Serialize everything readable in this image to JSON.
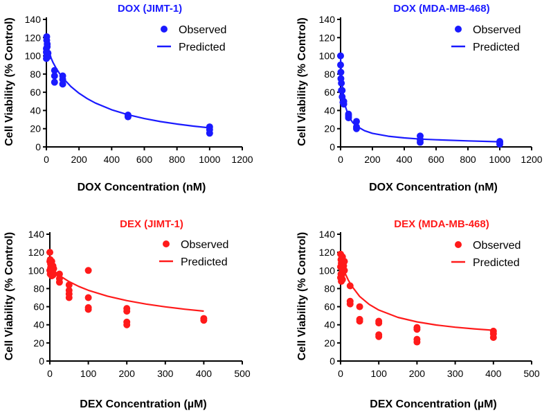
{
  "chart_data": [
    {
      "type": "scatter",
      "title": "DOX (JIMT-1)",
      "xlabel": "DOX Concentration (nM)",
      "ylabel": "Cell Viability (% Control)",
      "xlim": [
        0,
        1200
      ],
      "ylim": [
        0,
        140
      ],
      "xticks": [
        "0",
        "200",
        "400",
        "600",
        "800",
        "1000",
        "1200"
      ],
      "yticks": [
        "0",
        "20",
        "40",
        "60",
        "80",
        "100",
        "120",
        "140"
      ],
      "legend_position": "top-right",
      "color": "#1a1aff",
      "series": [
        {
          "name": "Observed",
          "kind": "points",
          "x": [
            0,
            0,
            0,
            2,
            2,
            2,
            5,
            5,
            10,
            10,
            50,
            50,
            50,
            100,
            100,
            100,
            500,
            500,
            1000,
            1000,
            1000
          ],
          "y": [
            108,
            104,
            97,
            121,
            117,
            100,
            113,
            110,
            103,
            99,
            84,
            78,
            71,
            78,
            74,
            69,
            35,
            33,
            22,
            19,
            15
          ]
        },
        {
          "name": "Predicted",
          "kind": "line",
          "x": [
            0,
            5,
            10,
            20,
            40,
            60,
            80,
            100,
            150,
            200,
            250,
            300,
            400,
            500,
            600,
            700,
            800,
            900,
            1000
          ],
          "y": [
            112,
            109,
            106.3,
            101.4,
            93,
            86.3,
            80.7,
            75.9,
            66.3,
            58.9,
            53,
            48.2,
            40.8,
            35.3,
            31.1,
            27.8,
            25.1,
            22.8,
            20.9
          ]
        }
      ]
    },
    {
      "type": "scatter",
      "title": "DOX (MDA-MB-468)",
      "xlabel": "DOX Concentration (nM)",
      "ylabel": "Cell Viability (% Control)",
      "xlim": [
        0,
        1200
      ],
      "ylim": [
        0,
        140
      ],
      "xticks": [
        "0",
        "200",
        "400",
        "600",
        "800",
        "1000",
        "1200"
      ],
      "yticks": [
        "0",
        "20",
        "40",
        "60",
        "80",
        "100",
        "120",
        "140"
      ],
      "legend_position": "top-right",
      "color": "#1a1aff",
      "series": [
        {
          "name": "Observed",
          "kind": "points",
          "x": [
            0,
            0,
            2,
            2,
            5,
            5,
            10,
            10,
            15,
            20,
            20,
            50,
            50,
            50,
            100,
            100,
            100,
            500,
            500,
            500,
            1000,
            1000,
            1000
          ],
          "y": [
            100,
            90,
            82,
            75,
            70,
            62,
            62,
            55,
            49,
            50,
            47,
            36,
            34,
            32,
            28,
            22,
            20,
            12,
            8,
            5,
            6,
            5,
            3
          ]
        },
        {
          "name": "Predicted",
          "kind": "line",
          "x": [
            0,
            5,
            10,
            20,
            30,
            50,
            75,
            100,
            150,
            200,
            300,
            400,
            500,
            600,
            800,
            1000
          ],
          "y": [
            98,
            80.5,
            68.7,
            53.8,
            44.6,
            34,
            26.9,
            22.8,
            17.8,
            14.9,
            11.7,
            9.9,
            8.6,
            7.8,
            6.6,
            5.6
          ]
        }
      ]
    },
    {
      "type": "scatter",
      "title": "DEX (JIMT-1)",
      "xlabel": "DEX Concentration (µM)",
      "ylabel": "Cell Viability (% Control)",
      "xlim": [
        0,
        500
      ],
      "ylim": [
        0,
        140
      ],
      "xticks": [
        "0",
        "100",
        "200",
        "300",
        "400",
        "500"
      ],
      "yticks": [
        "0",
        "20",
        "40",
        "60",
        "80",
        "100",
        "120",
        "140"
      ],
      "legend_position": "top-right",
      "color": "#ff1a1a",
      "series": [
        {
          "name": "Observed",
          "kind": "points",
          "x": [
            0,
            0,
            0,
            1,
            1,
            2,
            2,
            3,
            3,
            5,
            5,
            5,
            8,
            8,
            10,
            10,
            25,
            25,
            25,
            50,
            50,
            50,
            50,
            100,
            100,
            100,
            100,
            200,
            200,
            200,
            200,
            400,
            400
          ],
          "y": [
            120,
            110,
            100,
            112,
            96,
            107,
            103,
            104,
            98,
            110,
            100,
            94,
            105,
            95,
            102,
            96,
            96,
            91,
            87,
            84,
            78,
            74,
            70,
            100,
            70,
            59,
            57,
            58,
            55,
            43,
            40,
            47,
            45
          ]
        },
        {
          "name": "Predicted",
          "kind": "line",
          "x": [
            0,
            5,
            10,
            20,
            30,
            50,
            75,
            100,
            150,
            200,
            250,
            300,
            350,
            400
          ],
          "y": [
            104,
            101.8,
            99.8,
            96.2,
            93,
            87.7,
            82.4,
            78.1,
            71.6,
            66.7,
            62.9,
            59.8,
            57.2,
            55.1
          ]
        }
      ]
    },
    {
      "type": "scatter",
      "title": "DEX (MDA-MB-468)",
      "xlabel": "DEX Concentration (µM)",
      "ylabel": "Cell Viability (% Control)",
      "xlim": [
        0,
        500
      ],
      "ylim": [
        0,
        140
      ],
      "xticks": [
        "0",
        "100",
        "200",
        "300",
        "400",
        "500"
      ],
      "yticks": [
        "0",
        "20",
        "40",
        "60",
        "80",
        "100",
        "120",
        "140"
      ],
      "legend_position": "top-right",
      "color": "#ff1a1a",
      "series": [
        {
          "name": "Observed",
          "kind": "points",
          "x": [
            0,
            0,
            0,
            1,
            1,
            2,
            2,
            3,
            3,
            5,
            5,
            5,
            8,
            10,
            10,
            25,
            25,
            25,
            50,
            50,
            50,
            100,
            100,
            100,
            100,
            200,
            200,
            200,
            200,
            400,
            400,
            400
          ],
          "y": [
            118,
            104,
            92,
            112,
            96,
            108,
            88,
            110,
            95,
            115,
            100,
            90,
            105,
            110,
            100,
            83,
            66,
            63,
            60,
            46,
            44,
            44,
            42,
            29,
            27,
            37,
            35,
            24,
            21,
            33,
            30,
            26
          ]
        },
        {
          "name": "Predicted",
          "kind": "line",
          "x": [
            0,
            5,
            10,
            20,
            30,
            50,
            75,
            100,
            150,
            200,
            250,
            300,
            350,
            400
          ],
          "y": [
            110,
            104,
            98.6,
            89.6,
            82.3,
            71.3,
            62.5,
            56.3,
            48.2,
            43.2,
            39.8,
            37.3,
            35.5,
            34
          ]
        }
      ]
    }
  ]
}
